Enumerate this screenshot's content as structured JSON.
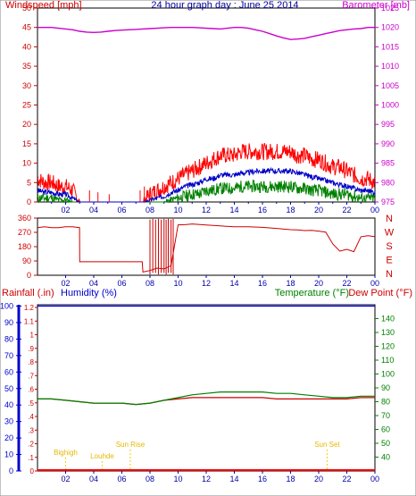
{
  "chart_data": [
    {
      "type": "line",
      "title": "24 hour graph day : June 25 2014",
      "left_label": "Windspeed [mph]",
      "right_label": "Barometer [mb]",
      "left_ticks": [
        0,
        5,
        10,
        15,
        20,
        25,
        30,
        35,
        40,
        45,
        50
      ],
      "right_ticks": [
        975,
        980,
        985,
        990,
        995,
        1000,
        1005,
        1010,
        1015,
        1020,
        1025
      ],
      "ylim_left": [
        0,
        50
      ],
      "ylim_right": [
        975,
        1025
      ],
      "x_ticks": [
        "02",
        "04",
        "06",
        "08",
        "10",
        "12",
        "14",
        "16",
        "18",
        "20",
        "22",
        "00"
      ],
      "colors": {
        "wind_gust": "#ff0000",
        "wind_avg": "#0000c8",
        "wind_low": "#008000",
        "barometer": "#cc00cc"
      },
      "series": [
        {
          "x": [
            0,
            0.5,
            1,
            1.5,
            2,
            2.5,
            3,
            3.5,
            4,
            4.5,
            5,
            5.5,
            6,
            6.5,
            7,
            7.5,
            8,
            8.5,
            9,
            9.5,
            10,
            10.5,
            11,
            11.5,
            12,
            12.5,
            13,
            13.5,
            14,
            14.5,
            15,
            15.5,
            16,
            16.5,
            17,
            17.5,
            18,
            18.5,
            19,
            19.5,
            20,
            20.5,
            21,
            21.5,
            22,
            22.5,
            23,
            23.5,
            24
          ],
          "values": [
            1020,
            1020,
            1020,
            1019.8,
            1019.6,
            1019.4,
            1019,
            1018.8,
            1018.7,
            1018.8,
            1019,
            1019.2,
            1019.3,
            1019.4,
            1019.5,
            1019.6,
            1019.7,
            1019.8,
            1019.9,
            1020,
            1020,
            1020,
            1020,
            1019.9,
            1019.8,
            1019.7,
            1019.6,
            1019.8,
            1020,
            1020,
            1019.8,
            1019.4,
            1019,
            1018.4,
            1017.8,
            1017.3,
            1016.9,
            1017,
            1017.2,
            1017.6,
            1018,
            1018.4,
            1018.8,
            1019.2,
            1019.4,
            1019.6,
            1019.7,
            1020,
            1020
          ]
        },
        {
          "x": [
            0,
            0.5,
            1,
            1.5,
            2,
            2.5,
            3,
            3.5,
            4,
            4.5,
            5,
            5.5,
            6,
            6.5,
            7,
            7.5,
            8,
            8.5,
            9,
            9.5,
            10,
            10.5,
            11,
            11.5,
            12,
            12.5,
            13,
            13.5,
            14,
            14.5,
            15,
            15.5,
            16,
            16.5,
            17,
            17.5,
            18,
            18.5,
            19,
            19.5,
            20,
            20.5,
            21,
            21.5,
            22,
            22.5,
            23,
            23.5,
            24
          ],
          "values": [
            6,
            5,
            5,
            4,
            4,
            3,
            0,
            0,
            0,
            0,
            0,
            0,
            0,
            0,
            0,
            0,
            2,
            3,
            4,
            5,
            6,
            7,
            8,
            9,
            10,
            11,
            12,
            12,
            12,
            13,
            13,
            13,
            13,
            13,
            13,
            13,
            13,
            12,
            12,
            11,
            11,
            10,
            9,
            9,
            8,
            7,
            6,
            6,
            5
          ]
        },
        {
          "x": [
            0,
            0.5,
            1,
            1.5,
            2,
            2.5,
            3,
            3.5,
            4,
            4.5,
            5,
            5.5,
            6,
            6.5,
            7,
            7.5,
            8,
            8.5,
            9,
            9.5,
            10,
            10.5,
            11,
            11.5,
            12,
            12.5,
            13,
            13.5,
            14,
            14.5,
            15,
            15.5,
            16,
            16.5,
            17,
            17.5,
            18,
            18.5,
            19,
            19.5,
            20,
            20.5,
            21,
            21.5,
            22,
            22.5,
            23,
            23.5,
            24
          ],
          "values": [
            3,
            2.5,
            2.5,
            2,
            2,
            1,
            0,
            0,
            0,
            0,
            0,
            0,
            0,
            0,
            0,
            0,
            0.5,
            1,
            1.5,
            2.5,
            3,
            4,
            4.5,
            5,
            6,
            6,
            7,
            7,
            7,
            7.5,
            7.5,
            8,
            8,
            8,
            8,
            8,
            8,
            7.5,
            7,
            6.5,
            6,
            5.5,
            5,
            4.5,
            4,
            3.5,
            3,
            3,
            2.5
          ]
        },
        {
          "x": [
            0,
            0.5,
            1,
            1.5,
            2,
            2.5,
            3,
            3.5,
            4,
            4.5,
            5,
            5.5,
            6,
            6.5,
            7,
            7.5,
            8,
            8.5,
            9,
            9.5,
            10,
            10.5,
            11,
            11.5,
            12,
            12.5,
            13,
            13.5,
            14,
            14.5,
            15,
            15.5,
            16,
            16.5,
            17,
            17.5,
            18,
            18.5,
            19,
            19.5,
            20,
            20.5,
            21,
            21.5,
            22,
            22.5,
            23,
            23.5,
            24
          ],
          "values": [
            1,
            1,
            1,
            0.5,
            0.5,
            0,
            0,
            0,
            0,
            0,
            0,
            0,
            0,
            0,
            0,
            0,
            0,
            0,
            0,
            0.5,
            1,
            1.5,
            2,
            2,
            3,
            3,
            3.5,
            3.5,
            3.5,
            4,
            4,
            4,
            4,
            4,
            4,
            4,
            4,
            3.5,
            3.5,
            3,
            3,
            2.5,
            2,
            2,
            2,
            1.5,
            1,
            1,
            1
          ]
        }
      ]
    },
    {
      "type": "line",
      "right_letters": [
        "N",
        "W",
        "S",
        "E",
        "N"
      ],
      "left_ticks": [
        0,
        90,
        180,
        270,
        360
      ],
      "ylim": [
        0,
        360
      ],
      "x_ticks": [
        "02",
        "04",
        "06",
        "08",
        "10",
        "12",
        "14",
        "16",
        "18",
        "20",
        "22",
        "00"
      ],
      "colors": {
        "direction": "#cc0000"
      },
      "series": [
        {
          "x": [
            0,
            0.5,
            1,
            1.5,
            2,
            2.5,
            2.99,
            3,
            4,
            5,
            6,
            7,
            7.45,
            7.5,
            8,
            8.5,
            9,
            9.5,
            10,
            10.5,
            11,
            12,
            13,
            14,
            15,
            16,
            17,
            18,
            18.5,
            19,
            19.5,
            20,
            20.5,
            21,
            21.5,
            22,
            22.5,
            23,
            23.5,
            24
          ],
          "values": [
            300,
            305,
            300,
            300,
            305,
            305,
            300,
            85,
            85,
            85,
            85,
            85,
            85,
            20,
            30,
            45,
            40,
            60,
            320,
            315,
            320,
            315,
            310,
            305,
            305,
            300,
            295,
            290,
            285,
            285,
            280,
            275,
            270,
            200,
            150,
            160,
            150,
            240,
            245,
            240
          ]
        }
      ]
    },
    {
      "type": "line",
      "left_labels": [
        "Rainfall (.in)",
        "Humidity (%)"
      ],
      "right_labels": [
        "Temperature (°F)",
        "Dew Point (°F)"
      ],
      "rain_ticks": [
        "0",
        ".1",
        ".2",
        ".3",
        ".4",
        ".5",
        ".6",
        ".7",
        ".8",
        ".9",
        "1",
        "1.1",
        "1.2"
      ],
      "humidity_ticks": [
        0,
        10,
        20,
        30,
        40,
        50,
        60,
        70,
        80,
        90,
        100
      ],
      "temp_ticks": [
        40,
        50,
        60,
        70,
        80,
        90,
        100,
        110,
        120,
        130,
        140
      ],
      "ylim_temp": [
        30,
        150
      ],
      "x_ticks": [
        "02",
        "04",
        "06",
        "08",
        "10",
        "12",
        "14",
        "16",
        "18",
        "20",
        "22",
        "00"
      ],
      "events": [
        {
          "label": "Bighigh",
          "x": 2.0
        },
        {
          "label": "Louhde",
          "x": 4.6
        },
        {
          "label": "Sun Rise",
          "x": 6.6
        },
        {
          "label": "Sun Set",
          "x": 20.6
        }
      ],
      "colors": {
        "rain": "#ff0000",
        "humidity": "#0000ff",
        "temperature": "#008000",
        "dewpoint": "#cc0000",
        "events": "#ffcc00"
      },
      "series": [
        {
          "x": [
            0,
            1,
            2,
            3,
            4,
            5,
            6,
            7,
            8,
            9,
            10,
            11,
            12,
            13,
            14,
            15,
            16,
            17,
            18,
            19,
            20,
            21,
            22,
            23,
            24
          ],
          "values": [
            82,
            82,
            81,
            80,
            79,
            79,
            79,
            78,
            79,
            81,
            83,
            85,
            86,
            87,
            87,
            87,
            87,
            86,
            86,
            85,
            84,
            83,
            83,
            84,
            84
          ]
        },
        {
          "x": [
            0,
            1,
            2,
            3,
            4,
            5,
            6,
            7,
            8,
            9,
            10,
            11,
            12,
            13,
            14,
            15,
            16,
            17,
            18,
            19,
            20,
            21,
            22,
            23,
            24
          ],
          "values": [
            82,
            82,
            81,
            80,
            79,
            79,
            79,
            78,
            79,
            81,
            82,
            83,
            83,
            83,
            83,
            83,
            83,
            82,
            82,
            82,
            82,
            82,
            82,
            83,
            83
          ]
        },
        {
          "x": [
            0,
            24
          ],
          "values": [
            100,
            100
          ]
        },
        {
          "x": [
            0,
            24
          ],
          "values": [
            0,
            0
          ]
        }
      ]
    }
  ]
}
